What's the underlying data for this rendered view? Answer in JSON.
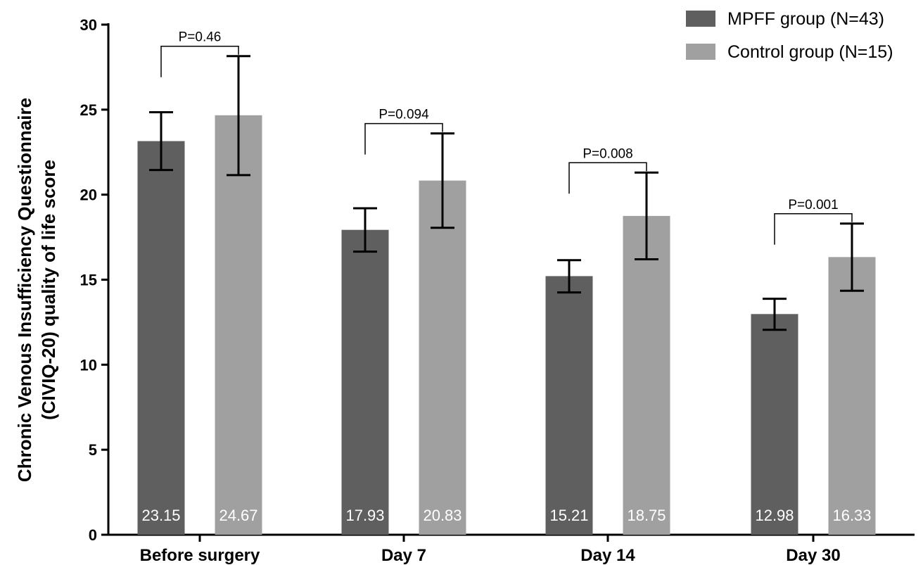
{
  "chart_data": {
    "type": "bar",
    "title": "",
    "xlabel": "",
    "ylabel_lines": [
      "Chronic Venous Insufficiency Questionnaire",
      "(CIVIQ-20) quality of life score"
    ],
    "ylim": [
      0,
      30
    ],
    "yticks": [
      0,
      5,
      10,
      15,
      20,
      25,
      30
    ],
    "categories": [
      "Before surgery",
      "Day 7",
      "Day 14",
      "Day 30"
    ],
    "series": [
      {
        "name": "MPFF group (N=43)",
        "color": "#5f5f5f",
        "values": [
          23.15,
          17.93,
          15.21,
          12.98
        ],
        "labels": [
          "23.15",
          "17.93",
          "15.21",
          "12.98"
        ],
        "err_low": [
          21.45,
          16.65,
          14.25,
          12.05
        ],
        "err_high": [
          24.85,
          19.2,
          16.15,
          13.88
        ]
      },
      {
        "name": "Control group (N=15)",
        "color": "#a0a0a0",
        "values": [
          24.67,
          20.83,
          18.75,
          16.33
        ],
        "labels": [
          "24.67",
          "20.83",
          "18.75",
          "16.33"
        ],
        "err_low": [
          21.15,
          18.05,
          16.2,
          14.35
        ],
        "err_high": [
          28.15,
          23.6,
          21.3,
          18.3
        ]
      }
    ],
    "p_values": [
      "P=0.46",
      "P=0.094",
      "P=0.008",
      "P=0.001"
    ],
    "legend_position": "top-right",
    "grid": false
  }
}
